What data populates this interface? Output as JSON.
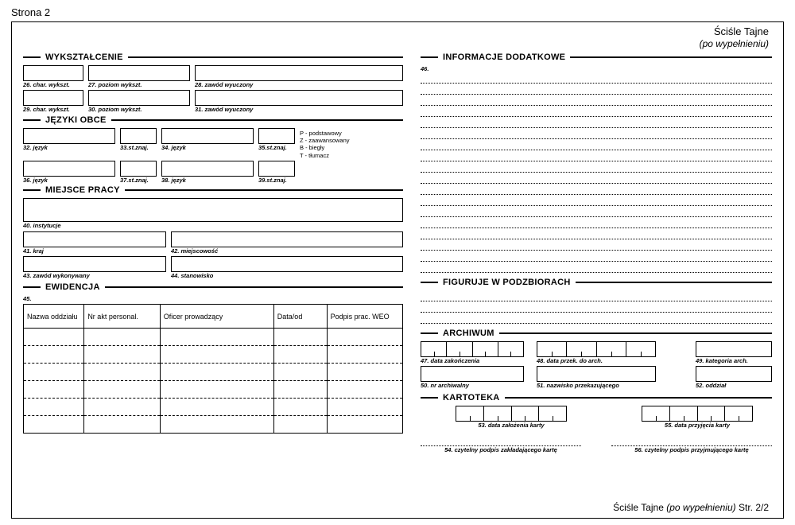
{
  "page_label": "Strona 2",
  "classification": {
    "line1": "Ściśle Tajne",
    "line2": "(po wypełnieniu)"
  },
  "footer": {
    "text1": "Ściśle Tajne ",
    "text2": "(po wypełnieniu)",
    "text3": " Str. 2/2"
  },
  "sections": {
    "wykszt": {
      "title": "WYKSZTAŁCENIE",
      "f26": "26. char. wykszt.",
      "f27": "27. poziom wykszt.",
      "f28": "28. zawód wyuczony",
      "f29": "29. char. wykszt.",
      "f30": "30. poziom wykszt.",
      "f31": "31. zawód wyuczony"
    },
    "jezyki": {
      "title": "JĘZYKI OBCE",
      "f32": "32. język",
      "f33": "33.st.znaj.",
      "f34": "34. język",
      "f35": "35.st.znaj.",
      "f36": "36. język",
      "f37": "37.st.znaj.",
      "f38": "38. język",
      "f39": "39.st.znaj.",
      "legend": {
        "p": "P - podstawowy",
        "z": "Z - zaawansowany",
        "b": "B - biegły",
        "t": "T - tłumacz"
      }
    },
    "miejsce": {
      "title": "MIEJSCE PRACY",
      "f40": "40. instytucje",
      "f41": "41. kraj",
      "f42": "42. miejscowość",
      "f43": "43. zawód wykonywany",
      "f44": "44. stanowisko"
    },
    "ewid": {
      "title": "EWIDENCJA",
      "num": "45.",
      "cols": [
        "Nazwa oddziału",
        "Nr akt personal.",
        "Oficer prowadzący",
        "Data/od",
        "Podpis prac. WEO"
      ],
      "row_count": 6
    },
    "info": {
      "title": "INFORMACJE DODATKOWE",
      "num": "46.",
      "line_count": 18
    },
    "figuruje": {
      "title": "FIGURUJE W PODZBIORACH",
      "line_count": 3
    },
    "arch": {
      "title": "ARCHIWUM",
      "f47": "47. data zakończenia",
      "f48": "48. data przek. do arch.",
      "f49": "49. kategoria arch.",
      "f50": "50. nr archiwalny",
      "f51": "51. nazwisko przekazującego",
      "f52": "52. oddział"
    },
    "kart": {
      "title": "KARTOTEKA",
      "f53": "53. data założenia karty",
      "f55": "55. data przyjęcia karty",
      "f54": "54. czytelny podpis zakładającego kartę",
      "f56": "56. czytelny podpis przyjmującego kartę"
    }
  },
  "colors": {
    "border": "#000000",
    "bg": "#ffffff",
    "text": "#000000"
  }
}
